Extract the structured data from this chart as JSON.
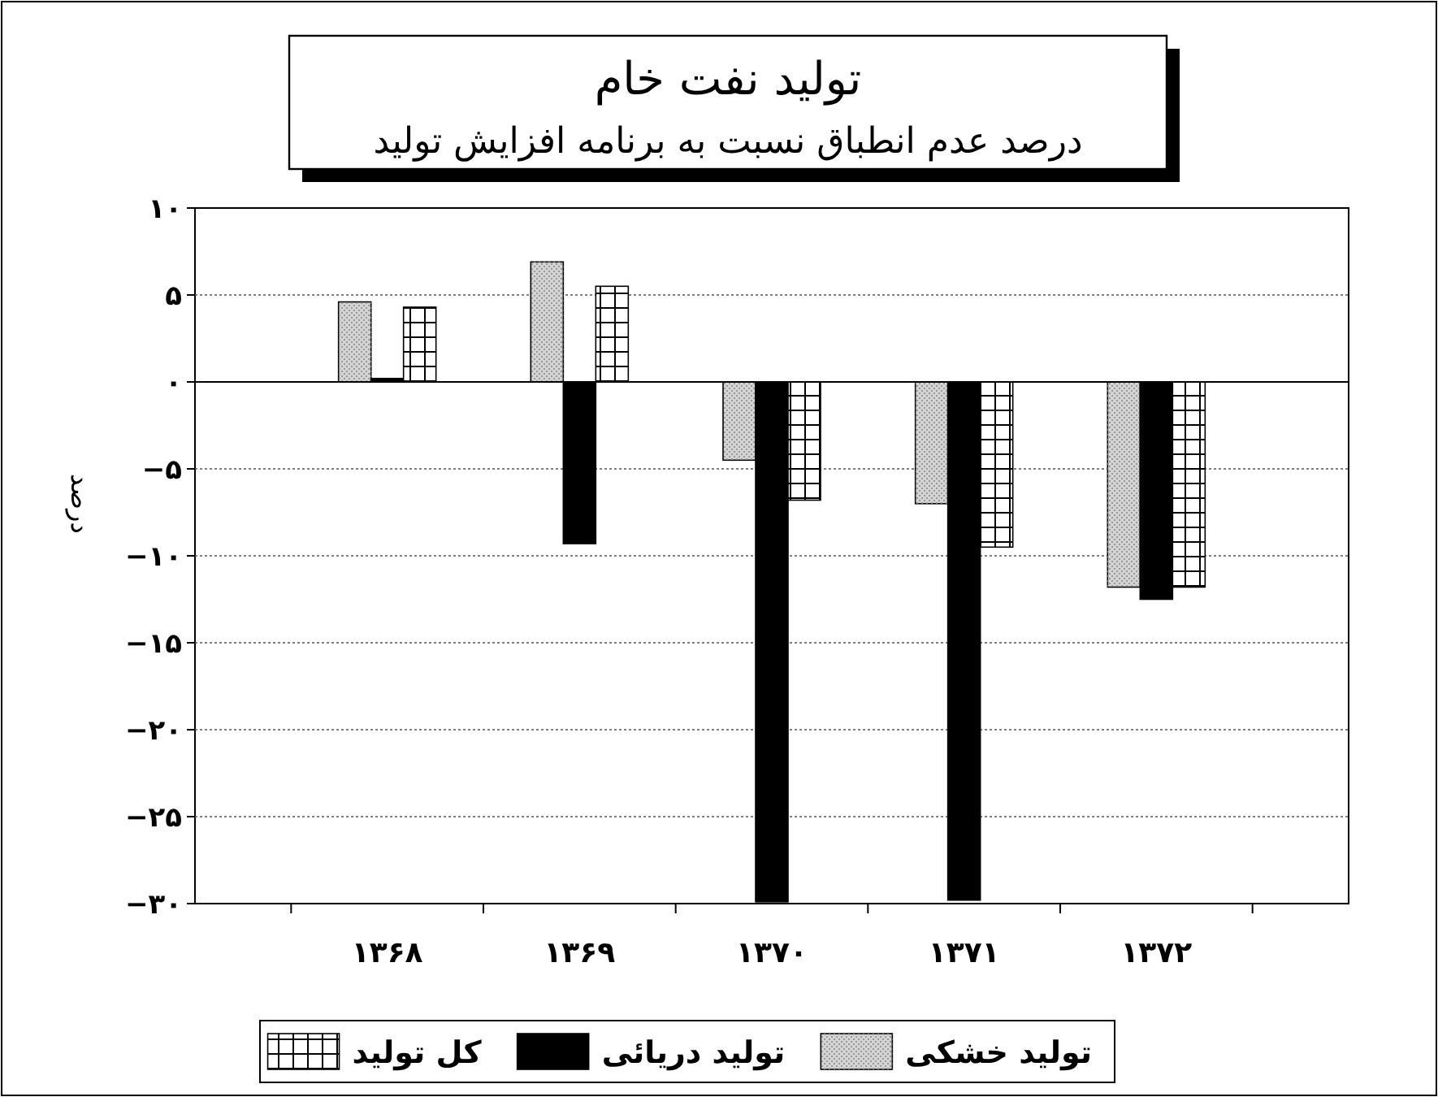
{
  "chart_data": {
    "type": "bar",
    "title": "تولید  نفت خام",
    "subtitle": "درصد عدم انطباق نسبت به برنامه افزایش تولید",
    "ylabel": "درصد",
    "categories": [
      "۱۳۶۸",
      "۱۳۶۹",
      "۱۳۷۰",
      "۱۳۷۱",
      "۱۳۷۲"
    ],
    "series": [
      {
        "name": "تولید خشکی",
        "color": "#d4d4d4",
        "values": [
          4.6,
          6.9,
          -4.5,
          -7.0,
          -11.8
        ]
      },
      {
        "name": "تولید دریائی",
        "color": "#000000",
        "values": [
          0.2,
          -9.3,
          -29.9,
          -29.8,
          -12.5
        ]
      },
      {
        "name": "کل تولید",
        "color": "#ffffff",
        "values": [
          4.3,
          5.5,
          -6.8,
          -9.5,
          -11.8
        ]
      }
    ],
    "ylim": [
      -30,
      10
    ],
    "yticks": [
      {
        "value": 10,
        "label": "۱۰"
      },
      {
        "value": 5,
        "label": "۵"
      },
      {
        "value": 0,
        "label": "۰"
      },
      {
        "value": -5,
        "label": "−۵"
      },
      {
        "value": -10,
        "label": "−۱۰"
      },
      {
        "value": -15,
        "label": "−۱۵"
      },
      {
        "value": -20,
        "label": "−۲۰"
      },
      {
        "value": -25,
        "label": "−۲۵"
      },
      {
        "value": -30,
        "label": "−۳۰"
      }
    ],
    "grid": "y",
    "legend": "bottom"
  }
}
